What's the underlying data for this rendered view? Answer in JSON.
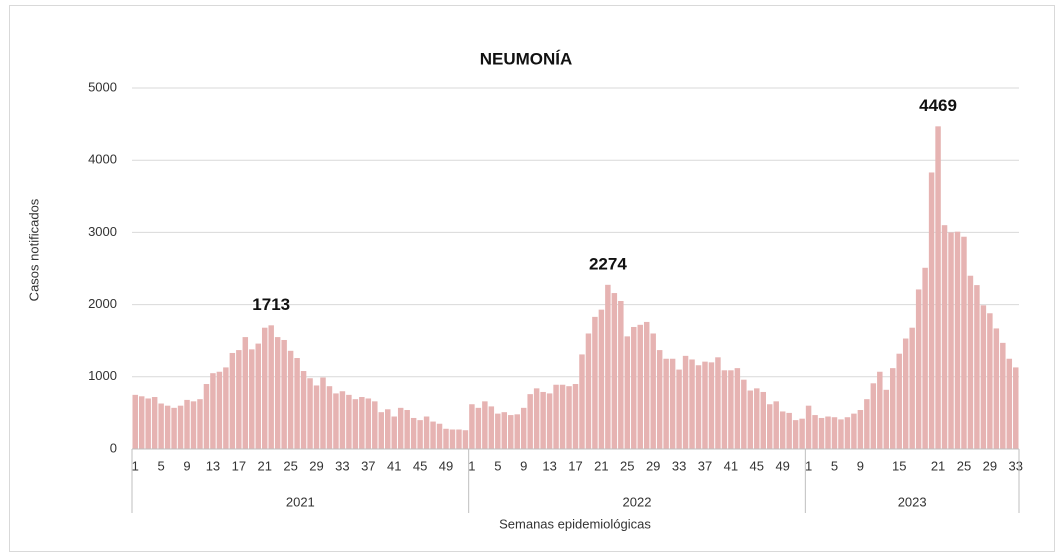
{
  "chart_data": {
    "type": "bar",
    "title": "NEUMONÍA",
    "y_label": "Casos notificados",
    "x_label": "Semanas epidemiológicas",
    "color": "#e6b3b2",
    "grid": true,
    "peak_labels": true,
    "ylim": [
      0,
      5000
    ],
    "yticks": [
      0,
      1000,
      2000,
      3000,
      4000,
      5000
    ],
    "groups": [
      {
        "name": "2021",
        "categories": [
          "1",
          null,
          null,
          null,
          "5",
          null,
          null,
          null,
          "9",
          null,
          null,
          null,
          "13",
          null,
          null,
          null,
          "17",
          null,
          null,
          null,
          "21",
          null,
          null,
          null,
          "25",
          null,
          null,
          null,
          "29",
          null,
          null,
          null,
          "33",
          null,
          null,
          null,
          "37",
          null,
          null,
          null,
          "41",
          null,
          null,
          null,
          "45",
          null,
          null,
          null,
          "49",
          null,
          null,
          null
        ],
        "values": [
          750,
          730,
          700,
          720,
          630,
          600,
          570,
          600,
          680,
          660,
          690,
          900,
          1050,
          1070,
          1130,
          1330,
          1370,
          1550,
          1380,
          1460,
          1680,
          1713,
          1550,
          1510,
          1360,
          1260,
          1080,
          980,
          880,
          990,
          870,
          770,
          800,
          750,
          690,
          720,
          700,
          660,
          510,
          550,
          450,
          570,
          540,
          430,
          400,
          450,
          380,
          350,
          280,
          270,
          270,
          260
        ]
      },
      {
        "name": "2022",
        "categories": [
          "1",
          null,
          null,
          null,
          "5",
          null,
          null,
          null,
          "9",
          null,
          null,
          null,
          "13",
          null,
          null,
          null,
          "17",
          null,
          null,
          null,
          "21",
          null,
          null,
          null,
          "25",
          null,
          null,
          null,
          "29",
          null,
          null,
          null,
          "33",
          null,
          null,
          null,
          "37",
          null,
          null,
          null,
          "41",
          null,
          null,
          null,
          "45",
          null,
          null,
          null,
          "49",
          null,
          null,
          null
        ],
        "values": [
          620,
          570,
          660,
          590,
          490,
          510,
          470,
          480,
          570,
          760,
          840,
          790,
          770,
          890,
          890,
          870,
          900,
          1310,
          1600,
          1830,
          1930,
          2274,
          2160,
          2050,
          1560,
          1690,
          1720,
          1760,
          1600,
          1370,
          1250,
          1250,
          1100,
          1290,
          1240,
          1160,
          1210,
          1200,
          1270,
          1090,
          1090,
          1120,
          960,
          810,
          840,
          790,
          620,
          660,
          520,
          500,
          400,
          420
        ]
      },
      {
        "name": "2023",
        "categories": [
          "1",
          null,
          null,
          null,
          "5",
          null,
          null,
          null,
          "9",
          null,
          null,
          null,
          null,
          null,
          "15",
          null,
          null,
          null,
          null,
          null,
          "21",
          null,
          null,
          null,
          "25",
          null,
          null,
          null,
          "29",
          null,
          null,
          null,
          "33"
        ],
        "values": [
          600,
          470,
          430,
          450,
          440,
          410,
          440,
          490,
          540,
          690,
          910,
          1070,
          820,
          1120,
          1320,
          1530,
          1680,
          2210,
          2510,
          3830,
          4469,
          3100,
          3000,
          3010,
          2940,
          2400,
          2270,
          1990,
          1880,
          1670,
          1470,
          1250,
          1130
        ]
      }
    ]
  }
}
